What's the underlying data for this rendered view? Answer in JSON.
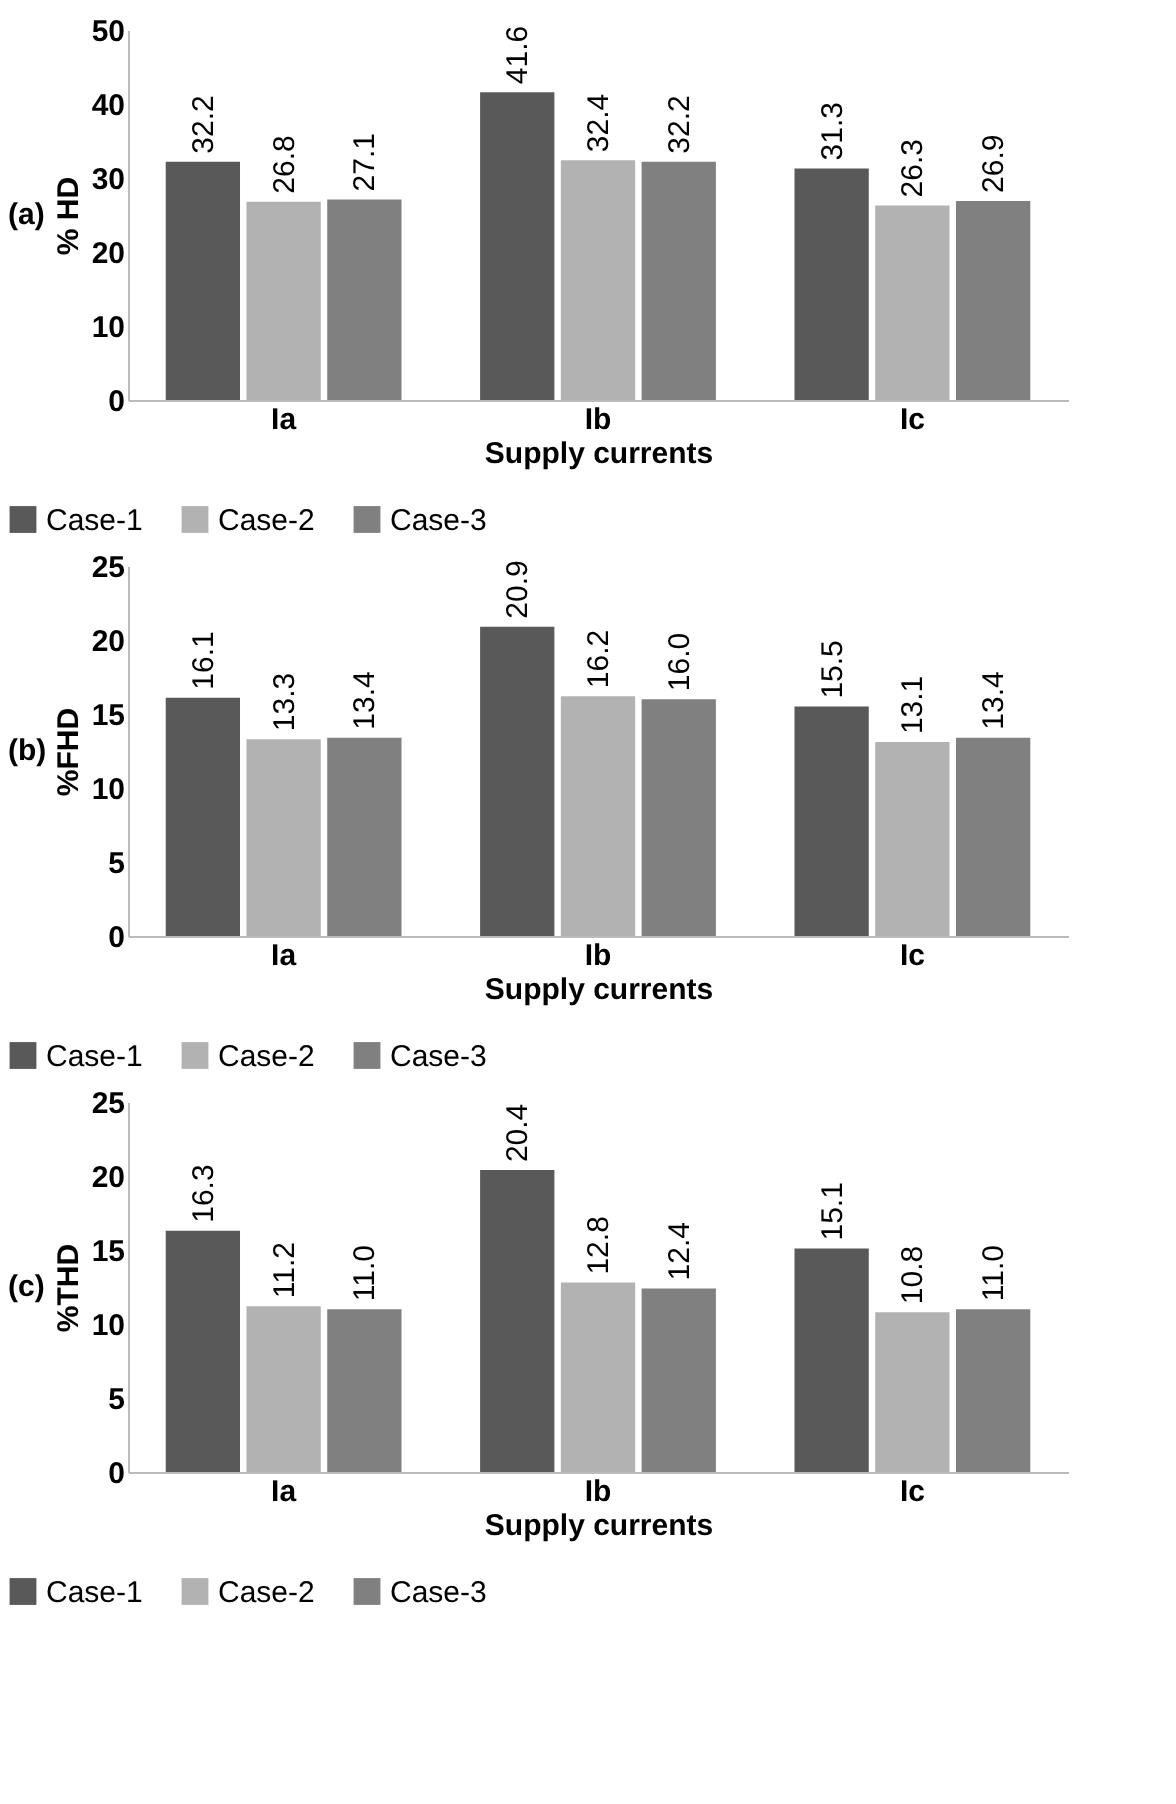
{
  "chart_data": [
    {
      "type": "bar",
      "annotations": [
        "(a)"
      ],
      "xlabel": "Supply currents",
      "ylabel": "% HD",
      "categories": [
        "Ia",
        "Ib",
        "Ic"
      ],
      "ylim": [
        0,
        50
      ],
      "yticks": [
        0,
        10,
        20,
        30,
        40,
        50
      ],
      "legend": "bottom",
      "grid": false,
      "series": [
        {
          "name": "Case-1",
          "color": "#595959",
          "values": [
            32.2,
            41.6,
            31.3
          ],
          "value_labels": [
            "32.2",
            "41.6",
            "31.3"
          ]
        },
        {
          "name": "Case-2",
          "color": "#b2b2b2",
          "values": [
            26.8,
            32.4,
            26.3
          ],
          "value_labels": [
            "26.8",
            "32.4",
            "26.3"
          ]
        },
        {
          "name": "Case-3",
          "color": "#808080",
          "values": [
            27.1,
            32.2,
            26.9
          ],
          "value_labels": [
            "27.1",
            "32.2",
            "26.9"
          ]
        }
      ]
    },
    {
      "type": "bar",
      "annotations": [
        "(b)"
      ],
      "xlabel": "Supply currents",
      "ylabel": "%FHD",
      "categories": [
        "Ia",
        "Ib",
        "Ic"
      ],
      "ylim": [
        0,
        25
      ],
      "yticks": [
        0,
        5,
        10,
        15,
        20,
        25
      ],
      "legend": "bottom",
      "grid": false,
      "series": [
        {
          "name": "Case-1",
          "color": "#595959",
          "values": [
            16.1,
            20.9,
            15.5
          ],
          "value_labels": [
            "16.1",
            "20.9",
            "15.5"
          ]
        },
        {
          "name": "Case-2",
          "color": "#b2b2b2",
          "values": [
            13.3,
            16.2,
            13.1
          ],
          "value_labels": [
            "13.3",
            "16.2",
            "13.1"
          ]
        },
        {
          "name": "Case-3",
          "color": "#808080",
          "values": [
            13.4,
            16.0,
            13.4
          ],
          "value_labels": [
            "13.4",
            "16.0",
            "13.4"
          ]
        }
      ]
    },
    {
      "type": "bar",
      "annotations": [
        "(c)"
      ],
      "xlabel": "Supply currents",
      "ylabel": "%THD",
      "categories": [
        "Ia",
        "Ib",
        "Ic"
      ],
      "ylim": [
        0,
        25
      ],
      "yticks": [
        0,
        5,
        10,
        15,
        20,
        25
      ],
      "legend": "bottom",
      "grid": false,
      "series": [
        {
          "name": "Case-1",
          "color": "#595959",
          "values": [
            16.3,
            20.4,
            15.1
          ],
          "value_labels": [
            "16.3",
            "20.4",
            "15.1"
          ]
        },
        {
          "name": "Case-2",
          "color": "#b2b2b2",
          "values": [
            11.2,
            12.8,
            10.8
          ],
          "value_labels": [
            "11.2",
            "12.8",
            "10.8"
          ]
        },
        {
          "name": "Case-3",
          "color": "#808080",
          "values": [
            11.0,
            12.4,
            11.0
          ],
          "value_labels": [
            "11.0",
            "12.4",
            "11.0"
          ]
        }
      ]
    }
  ]
}
